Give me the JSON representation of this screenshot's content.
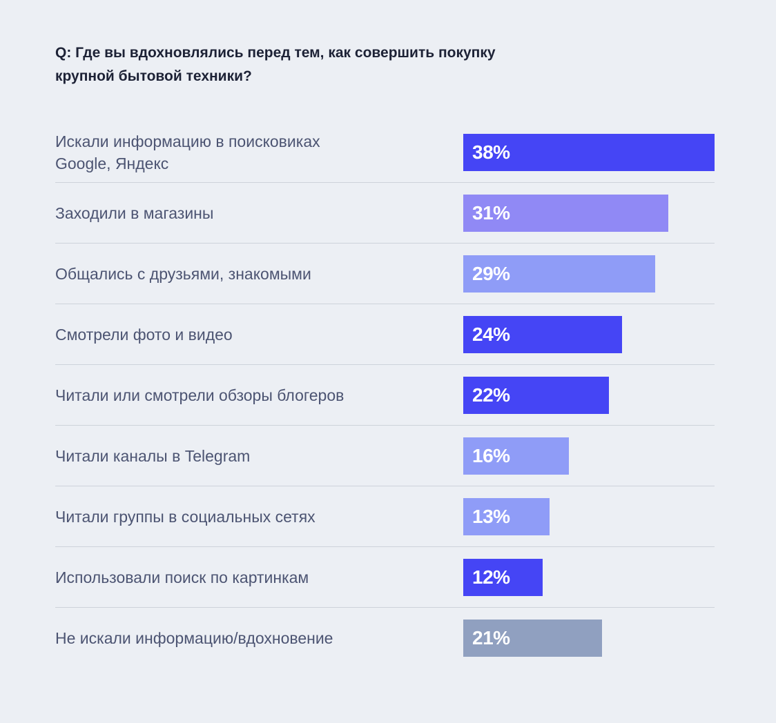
{
  "question": "Q: Где вы вдохновлялись перед тем, как совершить покупку крупной бытовой техники?",
  "colors": {
    "background": "#eceff4",
    "text_label": "#4c5472",
    "text_question": "#1d2236",
    "bar_dark": "#4545f5",
    "bar_medium": "#9089f5",
    "bar_light": "#8f9cf7",
    "bar_gray": "#90a0c0"
  },
  "chart_data": {
    "type": "bar",
    "orientation": "horizontal",
    "title": "Q: Где вы вдохновлялись перед тем, как совершить покупку крупной бытовой техники?",
    "xlim": [
      0,
      38
    ],
    "grid": false,
    "categories": [
      "Искали информацию в поисковиках Google, Яндекс",
      "Заходили в магазины",
      "Общались с друзьями, знакомыми",
      "Смотрели фото и видео",
      "Читали или смотрели обзоры блогеров",
      "Читали каналы в Telegram",
      "Читали группы в социальных сетях",
      "Использовали поиск по картинкам",
      "Не искали информацию/вдохновение"
    ],
    "values": [
      38,
      31,
      29,
      24,
      22,
      16,
      13,
      12,
      21
    ],
    "value_labels": [
      "38%",
      "31%",
      "29%",
      "24%",
      "22%",
      "16%",
      "13%",
      "12%",
      "21%"
    ],
    "bar_colors": [
      "#4545f5",
      "#9089f5",
      "#8f9cf7",
      "#4545f5",
      "#4545f5",
      "#8f9cf7",
      "#8f9cf7",
      "#4545f5",
      "#90a0c0"
    ]
  }
}
